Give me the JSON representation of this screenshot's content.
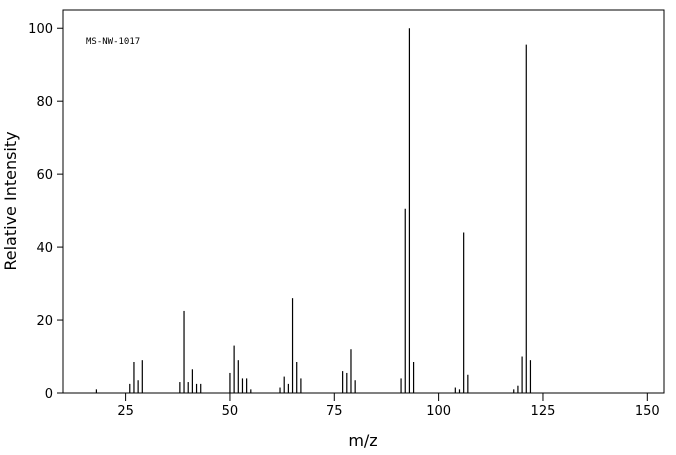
{
  "chart_data": {
    "type": "bar",
    "annotation": "MS-NW-1017",
    "xlabel": "m/z",
    "ylabel": "Relative Intensity",
    "x": [
      18,
      26,
      27,
      28,
      29,
      38,
      39,
      40,
      41,
      42,
      43,
      50,
      51,
      52,
      53,
      54,
      55,
      62,
      63,
      64,
      65,
      66,
      67,
      77,
      78,
      79,
      80,
      91,
      92,
      93,
      94,
      104,
      105,
      106,
      107,
      118,
      119,
      120,
      121,
      122
    ],
    "values": [
      1,
      2.5,
      8.5,
      3.5,
      9,
      3,
      22.5,
      3,
      6.5,
      2.5,
      2.5,
      5.5,
      13,
      9,
      4,
      4,
      1,
      1.5,
      4.5,
      2.5,
      26,
      8.5,
      4,
      6,
      5.5,
      12,
      3.5,
      4,
      50.5,
      100,
      8.5,
      1.5,
      1,
      44,
      5,
      1,
      2,
      10,
      95.5,
      9
    ],
    "color": "#000000",
    "xlim": [
      10,
      154
    ],
    "xticks": [
      25,
      50,
      75,
      100,
      125,
      150
    ],
    "ylim": [
      0,
      105
    ],
    "yticks": [
      0,
      20,
      40,
      60,
      80,
      100
    ]
  }
}
